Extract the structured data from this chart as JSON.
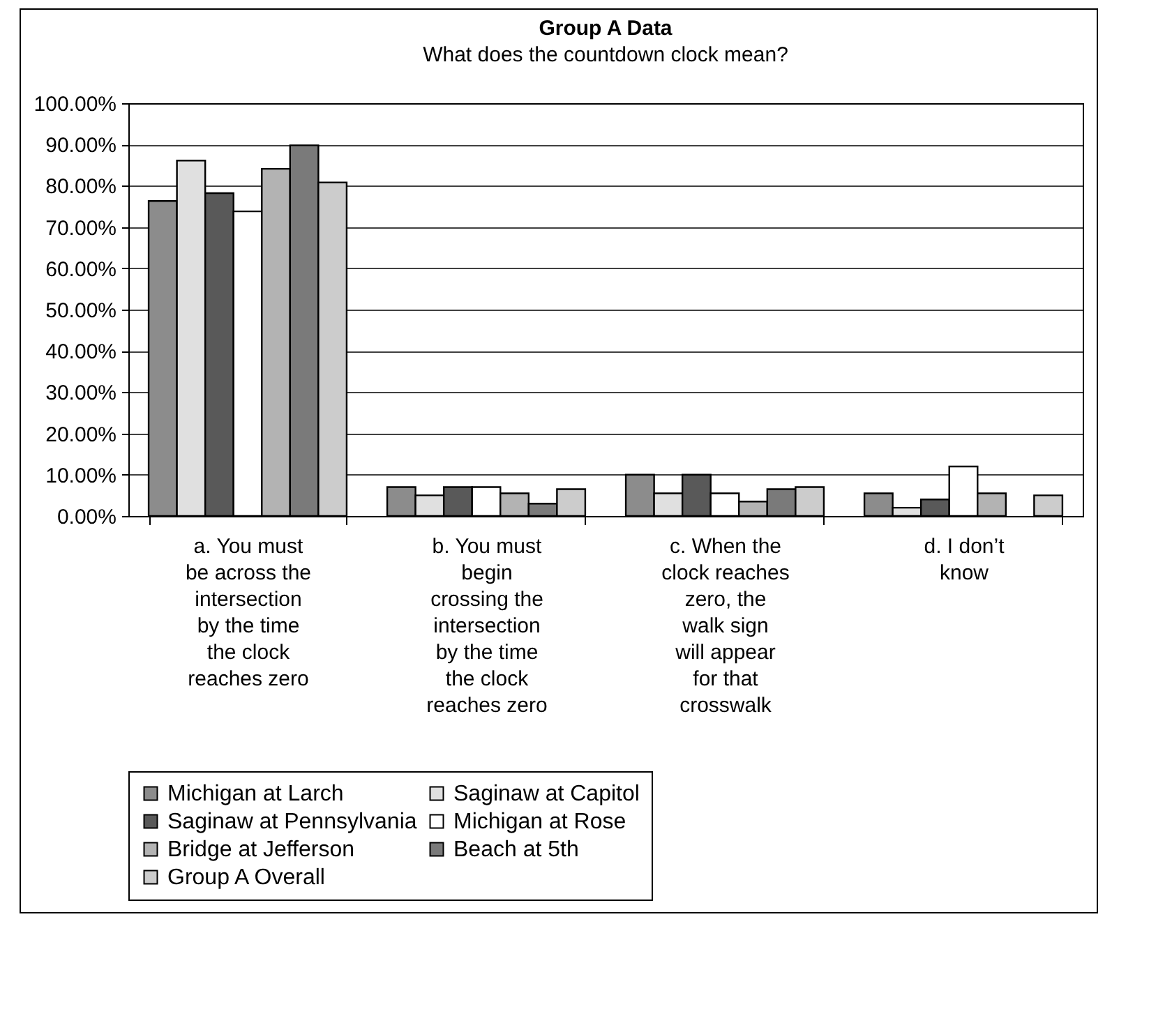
{
  "chart_data": {
    "type": "bar",
    "title": "Group A Data",
    "subtitle": "What does the countdown clock mean?",
    "categories": [
      "a. You must be across the intersection by the time the clock reaches zero",
      "b. You must begin crossing the intersection by the time the clock reaches zero",
      "c. When the clock reaches zero, the walk sign will appear for that crosswalk",
      "d. I don’t know"
    ],
    "series": [
      {
        "name": "Michigan at Larch",
        "color": "#8c8c8c",
        "values": [
          76.3,
          7,
          10,
          5.5
        ]
      },
      {
        "name": "Saginaw at Capitol",
        "color": "#e0e0e0",
        "values": [
          86.1,
          5,
          5.5,
          2
        ]
      },
      {
        "name": "Saginaw at Pennsylvania",
        "color": "#595959",
        "values": [
          78.2,
          7,
          10,
          4
        ]
      },
      {
        "name": "Michigan at Rose",
        "color": "#ffffff",
        "values": [
          73.8,
          7,
          5.5,
          12
        ]
      },
      {
        "name": "Bridge at Jefferson",
        "color": "#b3b3b3",
        "values": [
          84.1,
          5.5,
          3.5,
          5.5
        ]
      },
      {
        "name": "Beach at 5th",
        "color": "#7a7a7a",
        "values": [
          89.8,
          3,
          6.5,
          null
        ]
      },
      {
        "name": "Group A Overall",
        "color": "#cccccc",
        "values": [
          80.8,
          6.5,
          7,
          5
        ]
      }
    ],
    "ylim": [
      0,
      100
    ],
    "yticks": [
      {
        "value": 0,
        "label": "0.00%"
      },
      {
        "value": 10,
        "label": "10.00%"
      },
      {
        "value": 20,
        "label": "20.00%"
      },
      {
        "value": 30,
        "label": "30.00%"
      },
      {
        "value": 40,
        "label": "40.00%"
      },
      {
        "value": 50,
        "label": "50.00%"
      },
      {
        "value": 60,
        "label": "60.00%"
      },
      {
        "value": 70,
        "label": "70.00%"
      },
      {
        "value": 80,
        "label": "80.00%"
      },
      {
        "value": 90,
        "label": "90.00%"
      },
      {
        "value": 100,
        "label": "100.00%"
      }
    ],
    "grid": "y",
    "legend": "bottom"
  }
}
